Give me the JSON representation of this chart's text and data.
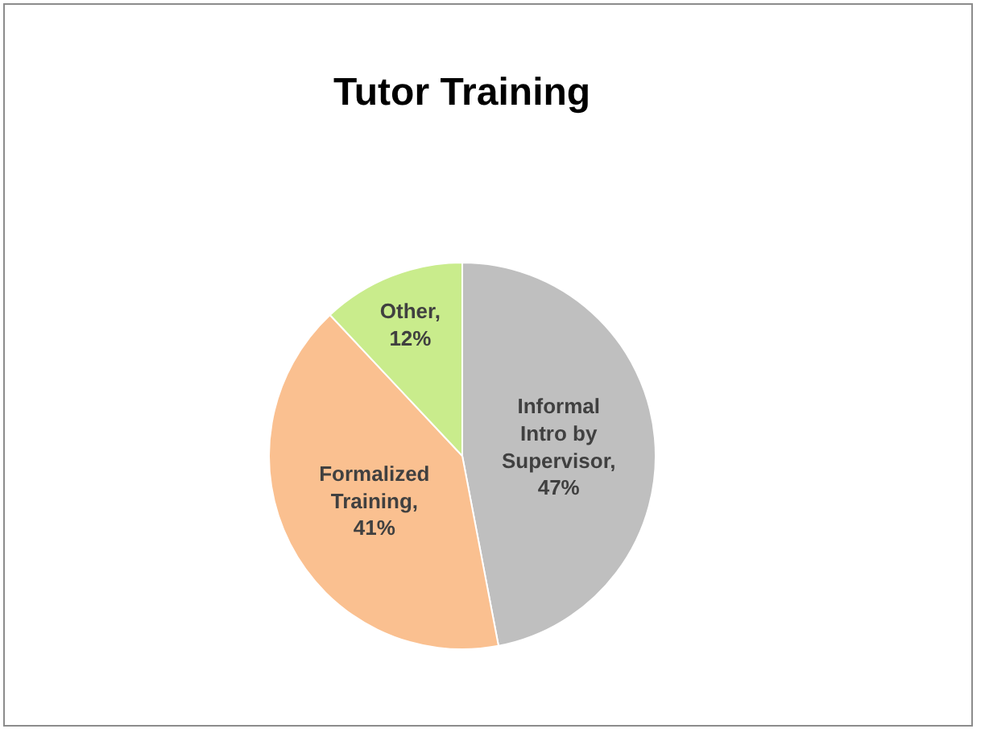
{
  "chart_data": {
    "type": "pie",
    "title": "Tutor Training",
    "categories": [
      "Informal Intro by Supervisor",
      "Formalized Training",
      "Other"
    ],
    "values": [
      47,
      41,
      12
    ],
    "colors": [
      "#bfbfbf",
      "#fac090",
      "#c9ec8c"
    ],
    "value_labels": [
      ", 47%",
      ", 41%",
      ", 12%"
    ],
    "legend": false
  }
}
